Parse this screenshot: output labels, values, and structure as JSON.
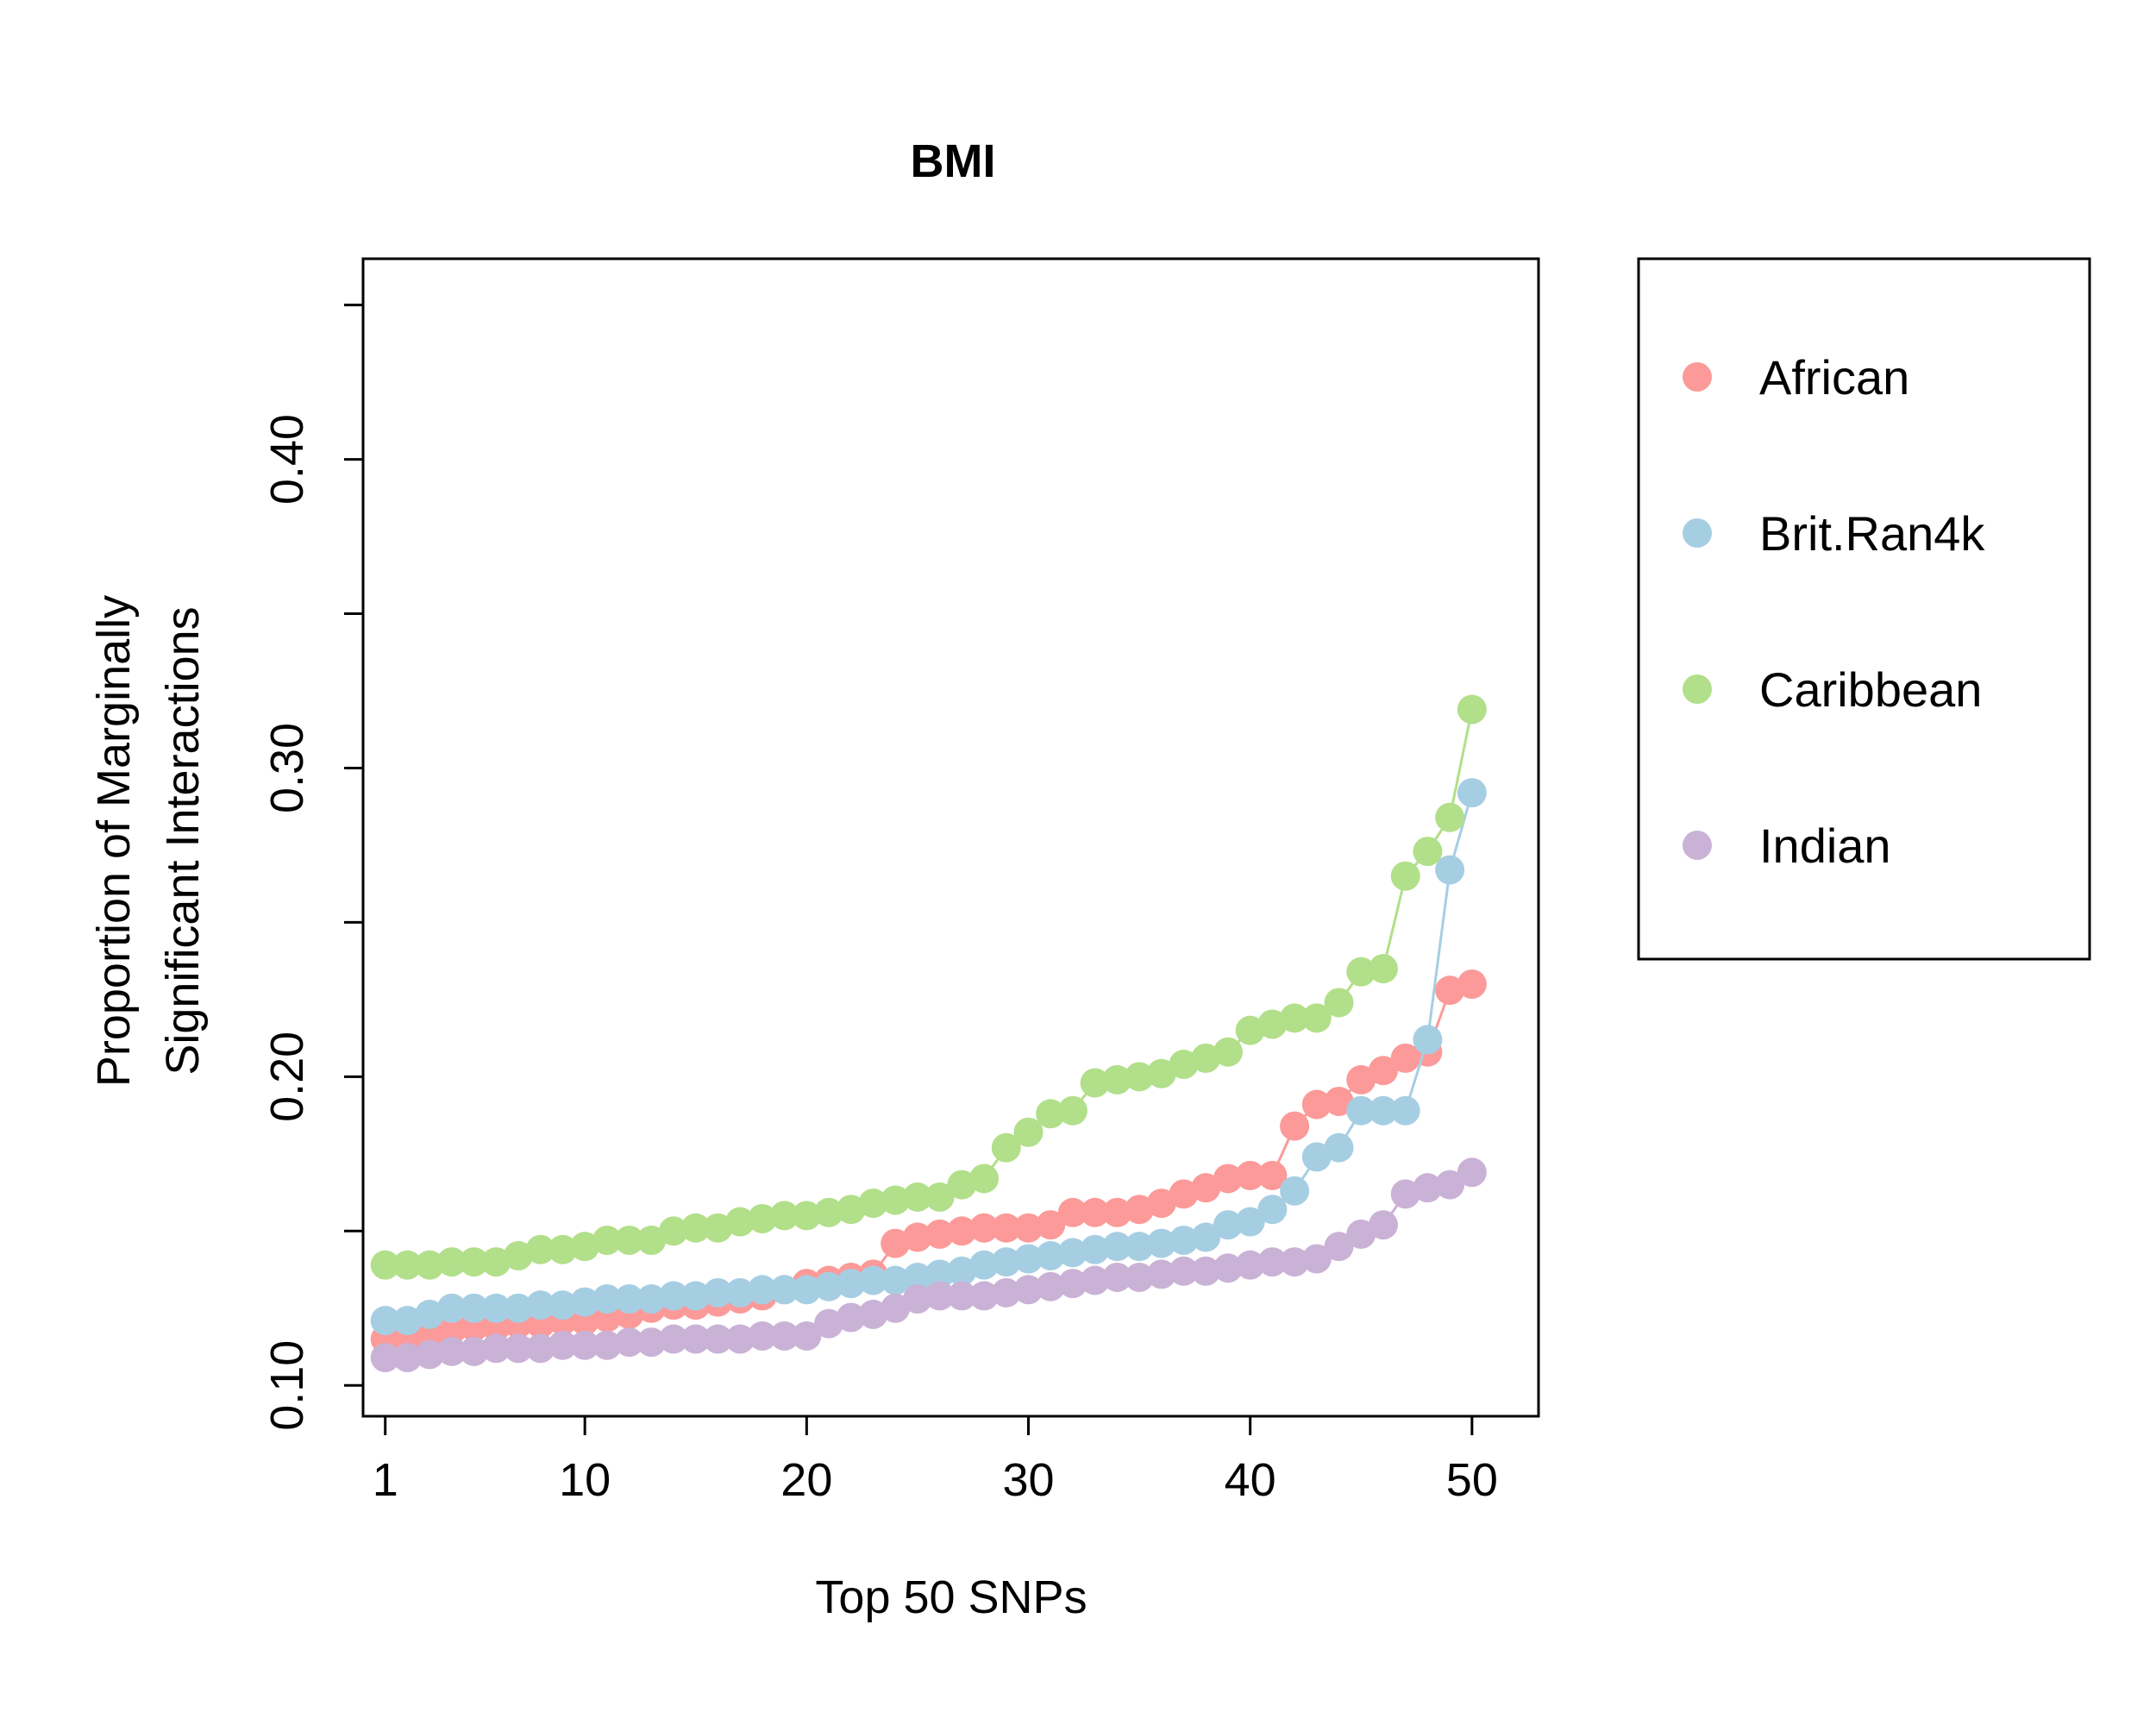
{
  "chart_data": {
    "type": "scatter",
    "title": "BMI",
    "xlabel": "Top 50 SNPs",
    "ylabel_lines": [
      "Proportion of Marginally",
      "Significant Interactions"
    ],
    "xlim": [
      0,
      53
    ],
    "ylim": [
      0.09,
      0.465
    ],
    "x_ticks": [
      1,
      10,
      20,
      30,
      40,
      50
    ],
    "x_tick_labels": [
      "1",
      "10",
      "20",
      "30",
      "40",
      "50"
    ],
    "y_ticks": [
      0.1,
      0.15,
      0.2,
      0.25,
      0.3,
      0.35,
      0.4,
      0.45
    ],
    "y_tick_labels": [
      "0.10",
      "",
      "0.20",
      "",
      "0.30",
      "",
      "0.40",
      ""
    ],
    "grid": false,
    "legend_position": "right, outside plot",
    "x": [
      1,
      2,
      3,
      4,
      5,
      6,
      7,
      8,
      9,
      10,
      11,
      12,
      13,
      14,
      15,
      16,
      17,
      18,
      19,
      20,
      21,
      22,
      23,
      24,
      25,
      26,
      27,
      28,
      29,
      30,
      31,
      32,
      33,
      34,
      35,
      36,
      37,
      38,
      39,
      40,
      41,
      42,
      43,
      44,
      45,
      46,
      47,
      48,
      49,
      50
    ],
    "series": [
      {
        "name": "African",
        "color": "#fb9a99",
        "values": [
          0.115,
          0.116,
          0.117,
          0.118,
          0.119,
          0.119,
          0.12,
          0.12,
          0.121,
          0.121,
          0.122,
          0.123,
          0.125,
          0.126,
          0.126,
          0.127,
          0.128,
          0.129,
          0.131,
          0.133,
          0.134,
          0.135,
          0.136,
          0.146,
          0.148,
          0.149,
          0.15,
          0.151,
          0.151,
          0.151,
          0.152,
          0.156,
          0.156,
          0.156,
          0.157,
          0.159,
          0.162,
          0.164,
          0.167,
          0.168,
          0.168,
          0.184,
          0.191,
          0.192,
          0.199,
          0.202,
          0.206,
          0.208,
          0.228,
          0.23
        ]
      },
      {
        "name": "Brit.Ran4k",
        "color": "#a6cee3",
        "values": [
          0.121,
          0.121,
          0.123,
          0.125,
          0.125,
          0.125,
          0.125,
          0.126,
          0.126,
          0.127,
          0.128,
          0.128,
          0.128,
          0.129,
          0.129,
          0.13,
          0.13,
          0.131,
          0.131,
          0.131,
          0.132,
          0.133,
          0.134,
          0.134,
          0.135,
          0.136,
          0.137,
          0.139,
          0.14,
          0.141,
          0.142,
          0.143,
          0.144,
          0.145,
          0.145,
          0.146,
          0.147,
          0.148,
          0.152,
          0.153,
          0.157,
          0.163,
          0.174,
          0.177,
          0.189,
          0.189,
          0.189,
          0.212,
          0.267,
          0.292
        ]
      },
      {
        "name": "Caribbean",
        "color": "#b2df8a",
        "values": [
          0.139,
          0.139,
          0.139,
          0.14,
          0.14,
          0.14,
          0.142,
          0.144,
          0.144,
          0.145,
          0.147,
          0.147,
          0.147,
          0.15,
          0.151,
          0.151,
          0.153,
          0.154,
          0.155,
          0.155,
          0.156,
          0.157,
          0.159,
          0.16,
          0.161,
          0.161,
          0.165,
          0.167,
          0.177,
          0.182,
          0.188,
          0.189,
          0.198,
          0.199,
          0.2,
          0.201,
          0.204,
          0.206,
          0.208,
          0.215,
          0.217,
          0.219,
          0.219,
          0.224,
          0.234,
          0.235,
          0.265,
          0.273,
          0.284,
          0.319
        ]
      },
      {
        "name": "Indian",
        "color": "#cab2d6",
        "values": [
          0.109,
          0.109,
          0.11,
          0.111,
          0.111,
          0.112,
          0.112,
          0.112,
          0.113,
          0.113,
          0.113,
          0.114,
          0.114,
          0.115,
          0.115,
          0.115,
          0.115,
          0.116,
          0.116,
          0.116,
          0.12,
          0.122,
          0.123,
          0.125,
          0.128,
          0.129,
          0.129,
          0.129,
          0.13,
          0.131,
          0.132,
          0.133,
          0.134,
          0.135,
          0.135,
          0.136,
          0.137,
          0.137,
          0.138,
          0.139,
          0.14,
          0.14,
          0.141,
          0.145,
          0.149,
          0.152,
          0.162,
          0.164,
          0.165,
          0.169
        ]
      }
    ]
  }
}
